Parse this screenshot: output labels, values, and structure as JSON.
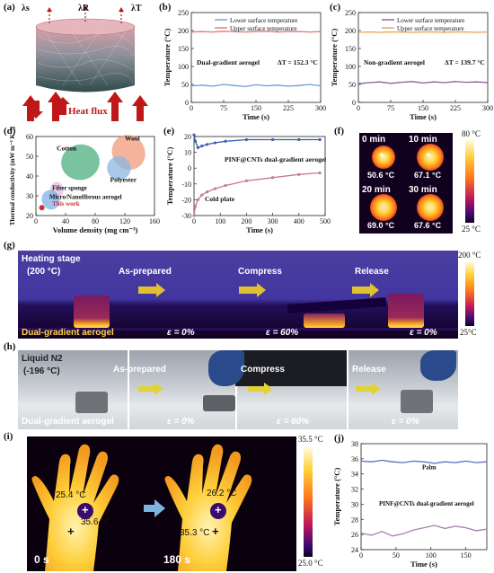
{
  "labels": {
    "a": "(a)",
    "b": "(b)",
    "c": "(c)",
    "d": "(d)",
    "e": "(e)",
    "f": "(f)",
    "g": "(g)",
    "h": "(h)",
    "i": "(i)",
    "j": "(j)"
  },
  "panel_a": {
    "lam_s": "λs",
    "lam_R": "λR",
    "lam_T": "λT",
    "heat_flux": "Heat flux"
  },
  "panel_f": {
    "times": [
      "0 min",
      "10 min",
      "20 min",
      "30 min"
    ],
    "temps": [
      "50.6 °C",
      "67.1 °C",
      "69.0 °C",
      "67.6 °C"
    ],
    "scale_max": "80 °C",
    "scale_min": "25 °C"
  },
  "panel_g": {
    "stage": "Heating stage",
    "stage_temp": "(200 °C)",
    "as_prepared": "As-prepared",
    "compress": "Compress",
    "release": "Release",
    "material": "Dual-gradient aerogel",
    "eps": [
      "ε = 0%",
      "ε = 60%",
      "ε = 0%"
    ],
    "scale_max": "200 °C",
    "scale_min": "25°C"
  },
  "panel_h": {
    "stage": "Liquid N2",
    "stage_temp": "(-196 °C)",
    "as_prepared": "As-prepared",
    "compress": "Compress",
    "release": "Release",
    "material": "Dual-gradient aerogel",
    "eps": [
      "ε = 0%",
      "ε = 60%",
      "ε = 0%"
    ]
  },
  "panel_i": {
    "t0": "0 s",
    "t1": "180 s",
    "left_t1": "25.4 °C",
    "left_t2": "35.6 °C",
    "right_t1": "26.2 °C",
    "right_t2": "35.3 °C",
    "scale_max": "35.5 °C",
    "scale_min": "25.0 °C"
  },
  "chart_data": [
    {
      "id": "b",
      "type": "line",
      "xlabel": "Time (s)",
      "ylabel": "Temperature (°C)",
      "xlim": [
        0,
        300
      ],
      "ylim": [
        0,
        250
      ],
      "xticks": [
        0,
        75,
        150,
        225,
        300
      ],
      "yticks": [
        0,
        50,
        100,
        150,
        200,
        250
      ],
      "annotation": "Dual-gradient aerogel",
      "delta": "ΔT = 152.3 °C",
      "series": [
        {
          "name": "Lower surface temperature",
          "color": "#6b9bd6",
          "x": [
            0,
            25,
            50,
            75,
            100,
            125,
            150,
            175,
            200,
            225,
            250,
            275,
            300
          ],
          "y": [
            46,
            48,
            45,
            50,
            47,
            44,
            49,
            46,
            48,
            45,
            47,
            50,
            46
          ]
        },
        {
          "name": "Upper surface temperature",
          "color": "#e27777",
          "x": [
            0,
            25,
            50,
            75,
            100,
            125,
            150,
            175,
            200,
            225,
            250,
            275,
            300
          ],
          "y": [
            196,
            197,
            196,
            198,
            197,
            196,
            197,
            198,
            196,
            197,
            197,
            196,
            197
          ]
        }
      ]
    },
    {
      "id": "c",
      "type": "line",
      "xlabel": "Time (s)",
      "ylabel": "Temperature (°C)",
      "xlim": [
        0,
        300
      ],
      "ylim": [
        0,
        250
      ],
      "xticks": [
        0,
        75,
        150,
        225,
        300
      ],
      "yticks": [
        0,
        50,
        100,
        150,
        200,
        250
      ],
      "annotation": "Non-gradient aerogel",
      "delta": "ΔT = 139.7 °C",
      "series": [
        {
          "name": "Lower surface temperature",
          "color": "#8e5a9c",
          "x": [
            0,
            25,
            50,
            75,
            100,
            125,
            150,
            175,
            200,
            225,
            250,
            275,
            300
          ],
          "y": [
            52,
            55,
            57,
            53,
            56,
            58,
            54,
            57,
            55,
            58,
            56,
            57,
            55
          ]
        },
        {
          "name": "Upper surface temperature",
          "color": "#e8a24a",
          "x": [
            0,
            25,
            50,
            75,
            100,
            125,
            150,
            175,
            200,
            225,
            250,
            275,
            300
          ],
          "y": [
            195,
            196,
            195,
            196,
            196,
            195,
            196,
            196,
            195,
            196,
            196,
            195,
            196
          ]
        }
      ]
    },
    {
      "id": "d",
      "type": "scatter",
      "xlabel": "Volume density (mg cm⁻³)",
      "ylabel": "Thermal conductivity (mW m⁻¹ K⁻¹)",
      "xlim": [
        0,
        160
      ],
      "ylim": [
        20,
        60
      ],
      "xticks": [
        0,
        40,
        80,
        120,
        160
      ],
      "yticks": [
        20,
        30,
        40,
        50,
        60
      ],
      "groups": [
        {
          "name": "Cotton",
          "color": "#4caf7d"
        },
        {
          "name": "Wool",
          "color": "#f09a78"
        },
        {
          "name": "Polyester",
          "color": "#89b6e0"
        },
        {
          "name": "Fiber sponge",
          "color": "#e6b8e0"
        },
        {
          "name": "Micro/Nanofibrous aerogel",
          "color": "#7fb0e8"
        },
        {
          "name": "This work",
          "color": "#d32f2f"
        }
      ]
    },
    {
      "id": "e",
      "type": "line",
      "xlabel": "Time (s)",
      "ylabel": "Temperature (°C)",
      "xlim": [
        0,
        500
      ],
      "ylim": [
        -30,
        20
      ],
      "xticks": [
        0,
        100,
        200,
        300,
        400,
        500
      ],
      "yticks": [
        -30,
        -20,
        -10,
        0,
        10,
        20
      ],
      "series": [
        {
          "name": "PINF@CNTs dual-gradient aerogel",
          "color": "#3b5ea8",
          "x": [
            0,
            5,
            15,
            30,
            50,
            80,
            120,
            200,
            300,
            400,
            480
          ],
          "y": [
            21,
            17,
            13,
            14,
            15,
            16,
            17,
            18,
            18,
            18,
            18
          ]
        },
        {
          "name": "Cold plate",
          "color": "#c37a9c",
          "x": [
            0,
            5,
            15,
            30,
            50,
            80,
            120,
            200,
            300,
            400,
            480
          ],
          "y": [
            -30,
            -24,
            -20,
            -17,
            -15,
            -13,
            -11,
            -8,
            -6,
            -4,
            -3
          ]
        }
      ]
    },
    {
      "id": "j",
      "type": "line",
      "xlabel": "Time (s)",
      "ylabel": "Temperature (°C)",
      "xlim": [
        0,
        180
      ],
      "ylim": [
        24,
        38
      ],
      "xticks": [
        0,
        50,
        100,
        150
      ],
      "yticks": [
        24,
        26,
        28,
        30,
        32,
        34,
        36,
        38
      ],
      "series": [
        {
          "name": "Palm",
          "color": "#5a6fc0",
          "x": [
            0,
            15,
            30,
            45,
            60,
            75,
            90,
            105,
            120,
            135,
            150,
            165,
            180
          ],
          "y": [
            35.7,
            35.6,
            35.8,
            35.6,
            35.5,
            35.7,
            35.6,
            35.4,
            35.6,
            35.5,
            35.7,
            35.5,
            35.6
          ]
        },
        {
          "name": "PINF@CNTs dual-gradient aerogel",
          "color": "#a67eb0",
          "x": [
            0,
            15,
            30,
            45,
            60,
            75,
            90,
            105,
            120,
            135,
            150,
            165,
            180
          ],
          "y": [
            26.2,
            25.9,
            26.4,
            25.8,
            26.1,
            26.6,
            26.9,
            27.2,
            26.8,
            27.1,
            26.9,
            26.5,
            26.7
          ]
        }
      ]
    }
  ]
}
